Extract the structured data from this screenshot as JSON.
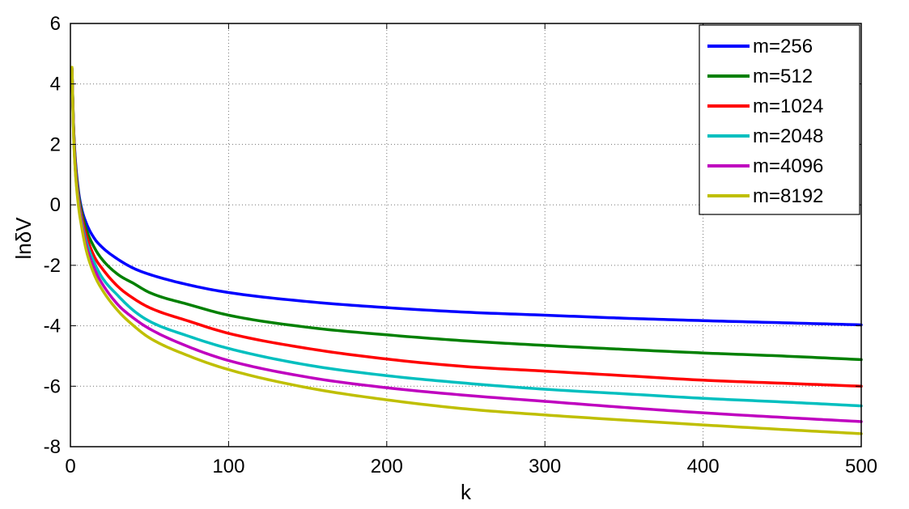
{
  "chart_data": {
    "type": "line",
    "title": "",
    "xlabel": "k",
    "ylabel": "lnδV",
    "xlim": [
      0,
      500
    ],
    "ylim": [
      -8,
      6
    ],
    "xticks": [
      0,
      100,
      200,
      300,
      400,
      500
    ],
    "yticks": [
      -8,
      -6,
      -4,
      -2,
      0,
      2,
      4,
      6
    ],
    "xtick_labels": [
      "0",
      "100",
      "200",
      "300",
      "400",
      "500"
    ],
    "ytick_labels": [
      "-8",
      "-6",
      "-4",
      "-2",
      "0",
      "2",
      "4",
      "6"
    ],
    "grid": true,
    "legend_position": "top-right",
    "x": [
      1,
      2,
      3,
      5,
      7,
      10,
      15,
      20,
      30,
      40,
      50,
      75,
      100,
      150,
      200,
      250,
      300,
      350,
      400,
      450,
      500
    ],
    "series": [
      {
        "name": "m=256",
        "color": "#0000ff",
        "values": [
          4.5,
          2.6,
          1.6,
          0.5,
          -0.1,
          -0.6,
          -1.1,
          -1.4,
          -1.8,
          -2.1,
          -2.3,
          -2.65,
          -2.9,
          -3.2,
          -3.4,
          -3.55,
          -3.65,
          -3.75,
          -3.83,
          -3.9,
          -3.97
        ]
      },
      {
        "name": "m=512",
        "color": "#008000",
        "values": [
          4.5,
          2.6,
          1.5,
          0.4,
          -0.2,
          -0.8,
          -1.4,
          -1.8,
          -2.3,
          -2.6,
          -2.9,
          -3.3,
          -3.65,
          -4.05,
          -4.3,
          -4.5,
          -4.65,
          -4.78,
          -4.9,
          -5.0,
          -5.12
        ]
      },
      {
        "name": "m=1024",
        "color": "#ff0000",
        "values": [
          4.5,
          2.5,
          1.4,
          0.3,
          -0.35,
          -1.0,
          -1.7,
          -2.1,
          -2.7,
          -3.1,
          -3.4,
          -3.85,
          -4.25,
          -4.75,
          -5.1,
          -5.35,
          -5.5,
          -5.65,
          -5.8,
          -5.9,
          -6.0
        ]
      },
      {
        "name": "m=2048",
        "color": "#00bfbf",
        "values": [
          4.5,
          2.4,
          1.3,
          0.2,
          -0.5,
          -1.2,
          -1.9,
          -2.4,
          -3.0,
          -3.5,
          -3.85,
          -4.35,
          -4.75,
          -5.3,
          -5.65,
          -5.9,
          -6.1,
          -6.25,
          -6.4,
          -6.52,
          -6.65
        ]
      },
      {
        "name": "m=4096",
        "color": "#bf00bf",
        "values": [
          4.5,
          2.4,
          1.25,
          0.1,
          -0.6,
          -1.35,
          -2.1,
          -2.6,
          -3.3,
          -3.75,
          -4.1,
          -4.7,
          -5.15,
          -5.7,
          -6.05,
          -6.3,
          -6.5,
          -6.7,
          -6.88,
          -7.03,
          -7.17
        ]
      },
      {
        "name": "m=8192",
        "color": "#bfbf00",
        "values": [
          4.55,
          2.3,
          1.2,
          0.0,
          -0.7,
          -1.5,
          -2.3,
          -2.8,
          -3.5,
          -4.0,
          -4.4,
          -5.0,
          -5.45,
          -6.05,
          -6.45,
          -6.75,
          -6.95,
          -7.12,
          -7.28,
          -7.43,
          -7.57
        ]
      }
    ]
  }
}
